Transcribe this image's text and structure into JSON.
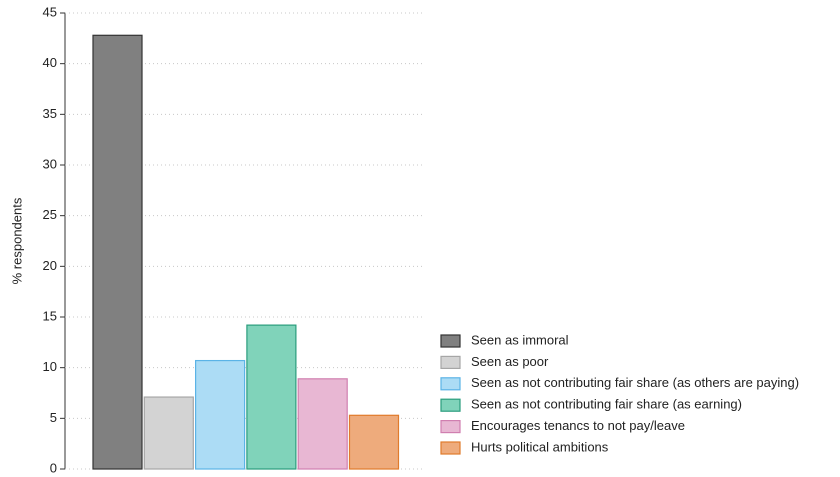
{
  "chart_data": {
    "type": "bar",
    "ylabel": "% respondents",
    "series": [
      {
        "name": "Seen as immoral",
        "color": "#808080",
        "edge": "#333333",
        "values": [
          42.8
        ]
      },
      {
        "name": "Seen as poor",
        "color": "#d3d3d3",
        "edge": "#a6a6a6",
        "values": [
          7.1
        ]
      },
      {
        "name": "Seen as not contributing fair share (as others are paying)",
        "color": "#acdcf5",
        "edge": "#5bb3e6",
        "values": [
          10.7
        ]
      },
      {
        "name": "Seen as not contributing fair share (as earning)",
        "color": "#80d3ba",
        "edge": "#2a9d7d",
        "values": [
          14.2
        ]
      },
      {
        "name": "Encourages tenancs to not pay/leave",
        "color": "#e8b7d3",
        "edge": "#d07fb0",
        "values": [
          8.9
        ]
      },
      {
        "name": "Hurts political ambitions",
        "color": "#eeab7c",
        "edge": "#e07b2c",
        "values": [
          5.3
        ]
      }
    ],
    "ylim": [
      0,
      45
    ],
    "yticks": [
      0,
      5,
      10,
      15,
      20,
      25,
      30,
      35,
      40,
      45
    ],
    "grid": true,
    "legend": "right"
  }
}
